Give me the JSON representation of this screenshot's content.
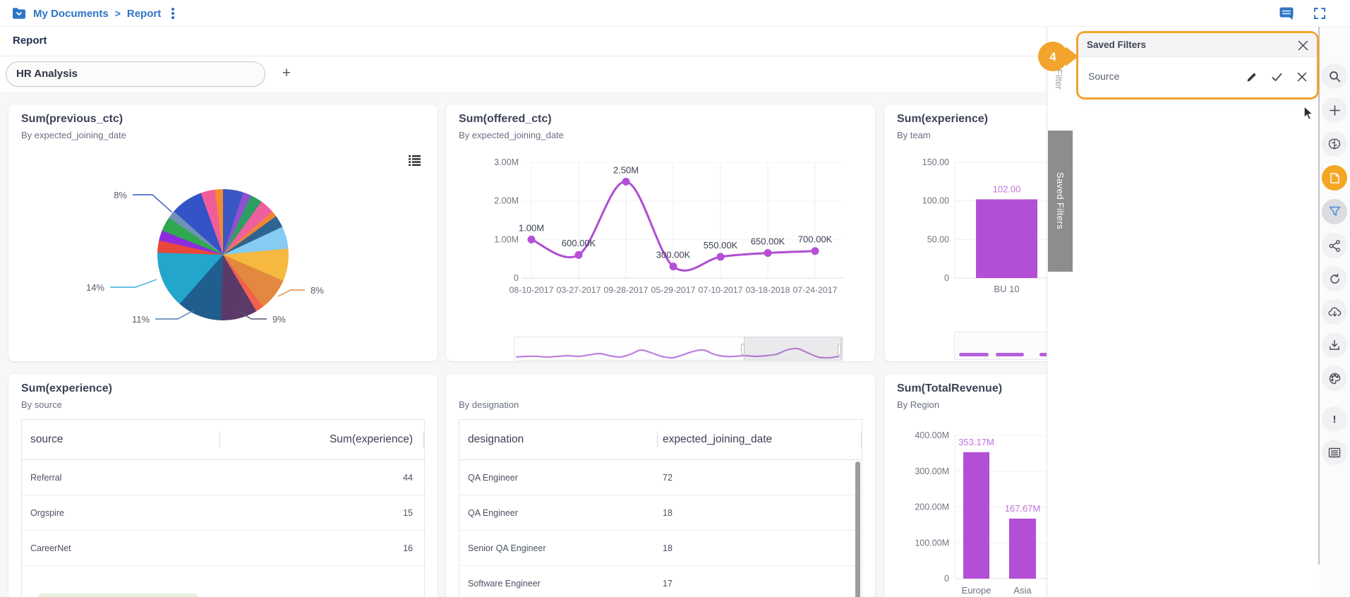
{
  "topbar": {
    "breadcrumb": [
      "My Documents",
      "Report"
    ],
    "icons": [
      "folder-icon",
      "comment-bubble-icon",
      "fullscreen-icon",
      "kebab-menu-icon"
    ]
  },
  "report": {
    "title": "Report"
  },
  "tabs": {
    "active": "HR Analysis",
    "add": "+"
  },
  "cards": [
    {
      "title": "Sum(previous_ctc)",
      "subtitle": "By expected_joining_date",
      "chart_data": {
        "type": "pie",
        "callout_labels": [
          "8%",
          "14%",
          "11%",
          "9%",
          "8%"
        ],
        "slices": [
          {
            "color": "#3a57c4",
            "value": 5
          },
          {
            "color": "#8f4fd1",
            "value": 2
          },
          {
            "color": "#2f9e62",
            "value": 3
          },
          {
            "color": "#ef5fa0",
            "value": 3.5
          },
          {
            "color": "#f08434",
            "value": 1.5
          },
          {
            "color": "#2f6391",
            "value": 3
          },
          {
            "color": "#85cbf2",
            "value": 5.5
          },
          {
            "color": "#f6b83e",
            "value": 8
          },
          {
            "color": "#e2883f",
            "value": 8,
            "label": "8%"
          },
          {
            "color": "#f2614d",
            "value": 2
          },
          {
            "color": "#5b3a69",
            "value": 9,
            "label": "9%"
          },
          {
            "color": "#1f5e8e",
            "value": 11,
            "label": "11%"
          },
          {
            "color": "#23a6cc",
            "value": 14,
            "label": "14%"
          },
          {
            "color": "#e8473b",
            "value": 3
          },
          {
            "color": "#8e2bdd",
            "value": 2.5
          },
          {
            "color": "#2fa84f",
            "value": 3.5
          },
          {
            "color": "#7191b5",
            "value": 2
          },
          {
            "color": "#3353c6",
            "value": 8,
            "label": "8%"
          },
          {
            "color": "#f25c9b",
            "value": 3.5
          },
          {
            "color": "#f28c2e",
            "value": 2
          }
        ]
      }
    },
    {
      "title": "Sum(offered_ctc)",
      "subtitle": "By expected_joining_date",
      "chart_data": {
        "type": "line",
        "color": "#AD4ED2",
        "x": [
          "08-10-2017",
          "03-27-2017",
          "09-28-2017",
          "05-29-2017",
          "07-10-2017",
          "03-18-2018",
          "07-24-2017"
        ],
        "values": [
          1000000,
          600000,
          2500000,
          300000,
          550000,
          650000,
          700000
        ],
        "point_labels": [
          "1.00M",
          "600.00K",
          "2.50M",
          "300.00K",
          "550.00K",
          "650.00K",
          "700.00K"
        ],
        "y_ticks": [
          "3.00M",
          "2.00M",
          "1.00M",
          "0"
        ],
        "ymin": 0,
        "ymax": 3000000
      }
    },
    {
      "title": "Sum(experience)",
      "subtitle": "By team",
      "chart_data": {
        "type": "bar",
        "categories": [
          "BU 10"
        ],
        "values": [
          102
        ],
        "bar_labels": [
          "102.00"
        ],
        "y_ticks": [
          "150.00",
          "100.00",
          "50.00",
          "0"
        ],
        "ymax": 150
      }
    },
    {
      "title": "Sum(experience)",
      "subtitle": "By source",
      "chart_data": {
        "type": "table",
        "columns": [
          "source",
          "Sum(experience)"
        ],
        "rows": [
          [
            "Referral",
            "44"
          ],
          [
            "Orgspire",
            "15"
          ],
          [
            "CareerNet",
            "16"
          ]
        ]
      }
    },
    {
      "title": "",
      "subtitle": "By designation",
      "chart_data": {
        "type": "table",
        "columns": [
          "designation",
          "expected_joining_date"
        ],
        "rows": [
          [
            "QA Engineer",
            "72"
          ],
          [
            "QA Engineer",
            "18"
          ],
          [
            "Senior QA Engineer",
            "18"
          ],
          [
            "Software Engineer",
            "17"
          ]
        ]
      }
    },
    {
      "title": "Sum(TotalRevenue)",
      "subtitle": "By Region",
      "chart_data": {
        "type": "bar",
        "categories": [
          "Europe",
          "Asia"
        ],
        "values": [
          353.17,
          167.67
        ],
        "bar_labels": [
          "353.17M",
          "167.67M"
        ],
        "y_ticks": [
          "400.00M",
          "300.00M",
          "200.00M",
          "100.00M",
          "0"
        ],
        "ymax": 400
      }
    }
  ],
  "saved_filters": {
    "badge": "4",
    "filter_tab": "Filter",
    "side_tab": "Saved Filters",
    "panel_title": "Saved Filters",
    "items": [
      {
        "name": "Source"
      }
    ]
  },
  "rail": {
    "icons": [
      "search-icon",
      "plus-icon",
      "ai-brain-icon",
      "notes-icon",
      "filter-icon",
      "share-icon",
      "refresh-icon",
      "cloud-download-icon",
      "download-icon",
      "palette-icon",
      "alert-icon",
      "comments-icon"
    ]
  },
  "colors": {
    "accent_orange": "#F2A42C",
    "brand_blue": "#2D74C6",
    "series_purple": "#B34FD6",
    "bar_label_purple": "#C173E0"
  }
}
